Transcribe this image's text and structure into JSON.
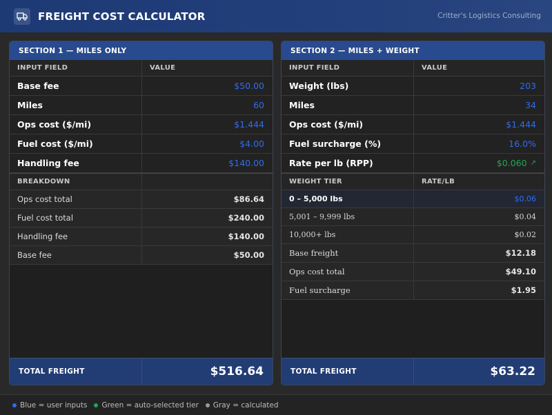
{
  "app": {
    "title": "FREIGHT COST CALCULATOR",
    "company": "Critter's Logistics Consulting",
    "logo_icon": "truck-icon"
  },
  "section1": {
    "title": "SECTION 1 — MILES ONLY",
    "col_input": "INPUT FIELD",
    "col_value": "VALUE",
    "inputs": [
      {
        "label": "Base fee",
        "value": "$50.00"
      },
      {
        "label": "Miles",
        "value": "60"
      },
      {
        "label": "Ops cost ($/mi)",
        "value": "$1.444"
      },
      {
        "label": "Fuel cost ($/mi)",
        "value": "$4.00"
      },
      {
        "label": "Handling fee",
        "value": "$140.00"
      }
    ],
    "breakdown_label": "BREAKDOWN",
    "breakdown": [
      {
        "label": "Ops cost total",
        "value": "$86.64"
      },
      {
        "label": "Fuel cost total",
        "value": "$240.00"
      },
      {
        "label": "Handling fee",
        "value": "$140.00"
      },
      {
        "label": "Base fee",
        "value": "$50.00"
      }
    ],
    "total_label": "TOTAL FREIGHT",
    "total_value": "$516.64"
  },
  "section2": {
    "title": "SECTION 2 — MILES + WEIGHT",
    "col_input": "INPUT FIELD",
    "col_value": "VALUE",
    "inputs": [
      {
        "label": "Weight (lbs)",
        "value": "203"
      },
      {
        "label": "Miles",
        "value": "34"
      },
      {
        "label": "Ops cost ($/mi)",
        "value": "$1.444"
      },
      {
        "label": "Fuel surcharge (%)",
        "value": "16.0%"
      },
      {
        "label": "Rate per lb (RPP)",
        "value": "$0.060",
        "trend": "↗"
      }
    ],
    "tier_col_label": "WEIGHT TIER",
    "rate_col_label": "RATE/LB",
    "tiers": [
      {
        "label": "0 – 5,000 lbs",
        "rate": "$0.06"
      },
      {
        "label": "5,001 – 9,999 lbs",
        "rate": "$0.04"
      },
      {
        "label": "10,000+ lbs",
        "rate": "$0.02"
      }
    ],
    "calculated": [
      {
        "label": "Base freight",
        "value": "$12.18"
      },
      {
        "label": "Ops cost total",
        "value": "$49.10"
      },
      {
        "label": "Fuel surcharge",
        "value": "$1.95"
      }
    ],
    "total_label": "TOTAL FREIGHT",
    "total_value": "$63.22"
  },
  "legend": {
    "blue": "Blue = user inputs",
    "green": "Green = auto-selected tier",
    "gray": "Gray = calculated"
  },
  "colors": {
    "input_blue": "#2f6cf0",
    "tier_green": "#23a653",
    "header_navy": "#1e3a75",
    "calc_gray": "#9a9a9a"
  }
}
